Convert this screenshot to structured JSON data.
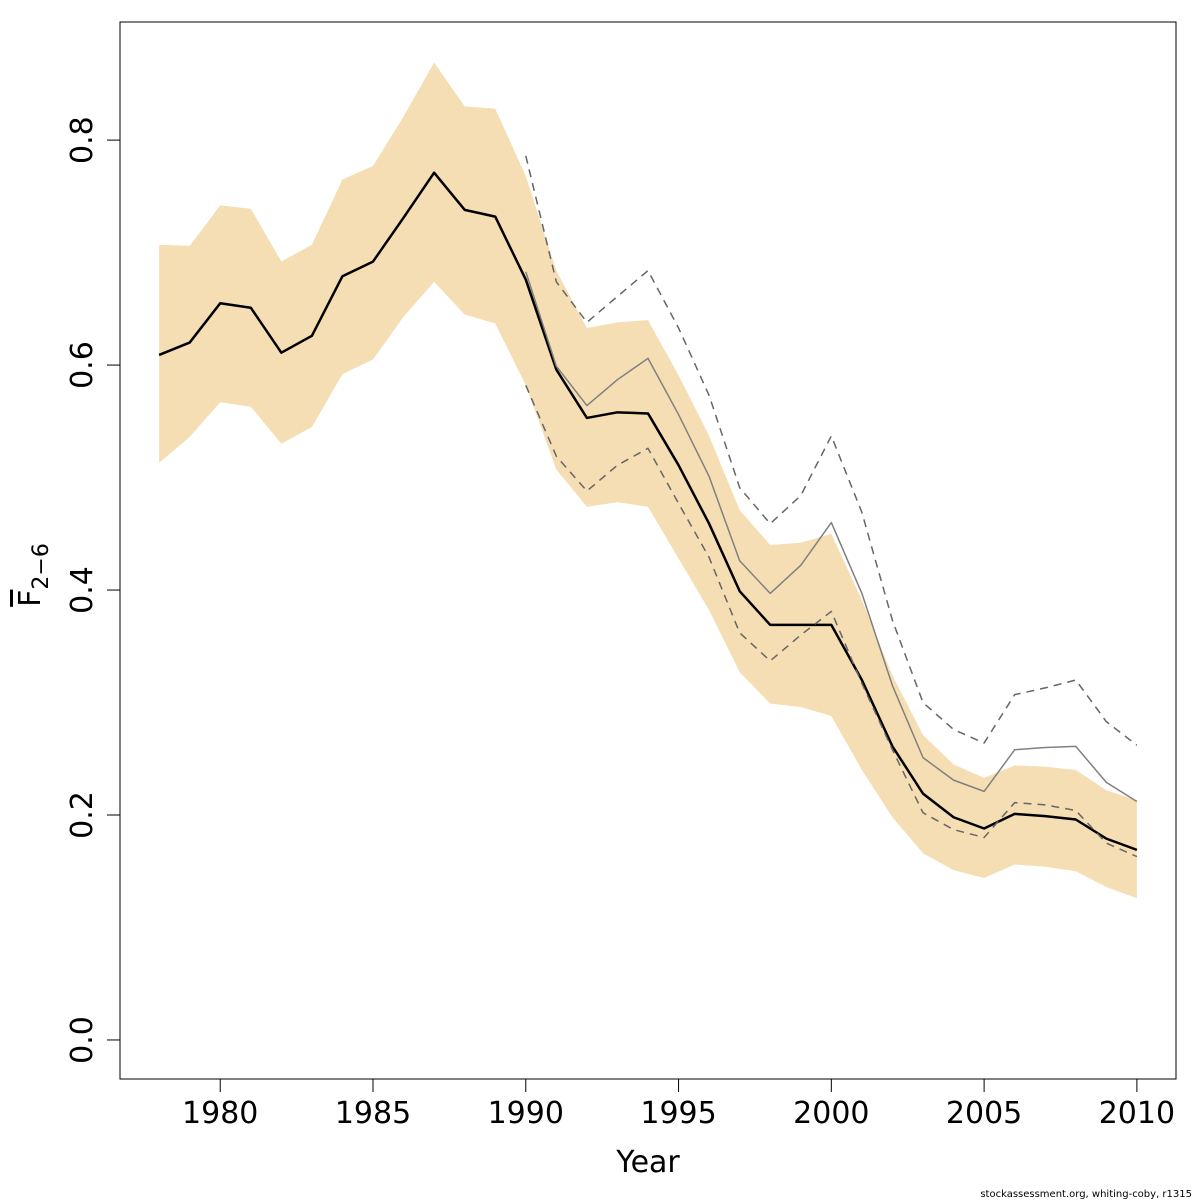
{
  "chart_data": {
    "type": "line",
    "x_label": "Year",
    "y_label": {
      "symbol": "F",
      "subscript": "2−6"
    },
    "footer": "stockassessment.org, whiting-coby, r1315",
    "x": [
      1978,
      1979,
      1980,
      1981,
      1982,
      1983,
      1984,
      1985,
      1986,
      1987,
      1988,
      1989,
      1990,
      1991,
      1992,
      1993,
      1994,
      1995,
      1996,
      1997,
      1998,
      1999,
      2000,
      2001,
      2002,
      2003,
      2004,
      2005,
      2006,
      2007,
      2008,
      2009,
      2010
    ],
    "band": {
      "color": "#f5deb3",
      "upper": [
        0.707,
        0.706,
        0.742,
        0.739,
        0.692,
        0.707,
        0.765,
        0.777,
        0.821,
        0.869,
        0.83,
        0.828,
        0.768,
        0.684,
        0.633,
        0.638,
        0.64,
        0.591,
        0.537,
        0.471,
        0.44,
        0.442,
        0.45,
        0.391,
        0.324,
        0.271,
        0.245,
        0.233,
        0.244,
        0.243,
        0.24,
        0.222,
        0.213
      ],
      "lower": [
        0.513,
        0.536,
        0.567,
        0.563,
        0.53,
        0.545,
        0.592,
        0.605,
        0.643,
        0.674,
        0.645,
        0.637,
        0.582,
        0.507,
        0.474,
        0.478,
        0.474,
        0.428,
        0.382,
        0.327,
        0.299,
        0.296,
        0.288,
        0.24,
        0.198,
        0.166,
        0.151,
        0.144,
        0.156,
        0.154,
        0.15,
        0.136,
        0.126
      ]
    },
    "series": [
      {
        "color": "#000000",
        "width": 2.5,
        "dashed": false,
        "values": [
          0.609,
          0.62,
          0.655,
          0.651,
          0.611,
          0.626,
          0.679,
          0.692,
          0.731,
          0.771,
          0.738,
          0.732,
          0.676,
          0.596,
          0.553,
          0.558,
          0.557,
          0.511,
          0.459,
          0.399,
          0.369,
          0.369,
          0.369,
          0.32,
          0.261,
          0.219,
          0.198,
          0.188,
          0.201,
          0.199,
          0.196,
          0.179,
          0.169
        ]
      },
      {
        "color": "#808080",
        "width": 1.5,
        "dashed": false,
        "values": [
          null,
          null,
          null,
          null,
          null,
          null,
          null,
          null,
          null,
          null,
          null,
          null,
          0.683,
          0.599,
          0.564,
          0.587,
          0.606,
          0.556,
          0.501,
          0.426,
          0.397,
          0.422,
          0.46,
          0.397,
          0.315,
          0.251,
          0.231,
          0.221,
          0.258,
          0.26,
          0.261,
          0.229,
          0.212
        ]
      },
      {
        "color": "#666666",
        "width": 1.5,
        "dashed": true,
        "values": [
          null,
          null,
          null,
          null,
          null,
          null,
          null,
          null,
          null,
          null,
          null,
          null,
          0.786,
          0.674,
          0.638,
          0.661,
          0.684,
          0.633,
          0.573,
          0.491,
          0.459,
          0.484,
          0.537,
          0.469,
          0.373,
          0.3,
          0.276,
          0.264,
          0.307,
          0.313,
          0.32,
          0.283,
          0.262
        ]
      },
      {
        "color": "#666666",
        "width": 1.5,
        "dashed": true,
        "values": [
          null,
          null,
          null,
          null,
          null,
          null,
          null,
          null,
          null,
          null,
          null,
          null,
          0.582,
          0.519,
          0.488,
          0.511,
          0.526,
          0.477,
          0.429,
          0.362,
          0.337,
          0.36,
          0.381,
          0.317,
          0.258,
          0.202,
          0.187,
          0.18,
          0.211,
          0.209,
          0.204,
          0.175,
          0.163
        ]
      }
    ],
    "xlim": [
      1976.72,
      2011.28
    ],
    "ylim": [
      -0.0347,
      0.905
    ],
    "xticks": [
      1980,
      1985,
      1990,
      1995,
      2000,
      2005,
      2010
    ],
    "yticks": [
      {
        "value": 0,
        "label": "0.0"
      },
      0.2,
      0.4,
      0.6,
      0.8
    ]
  }
}
